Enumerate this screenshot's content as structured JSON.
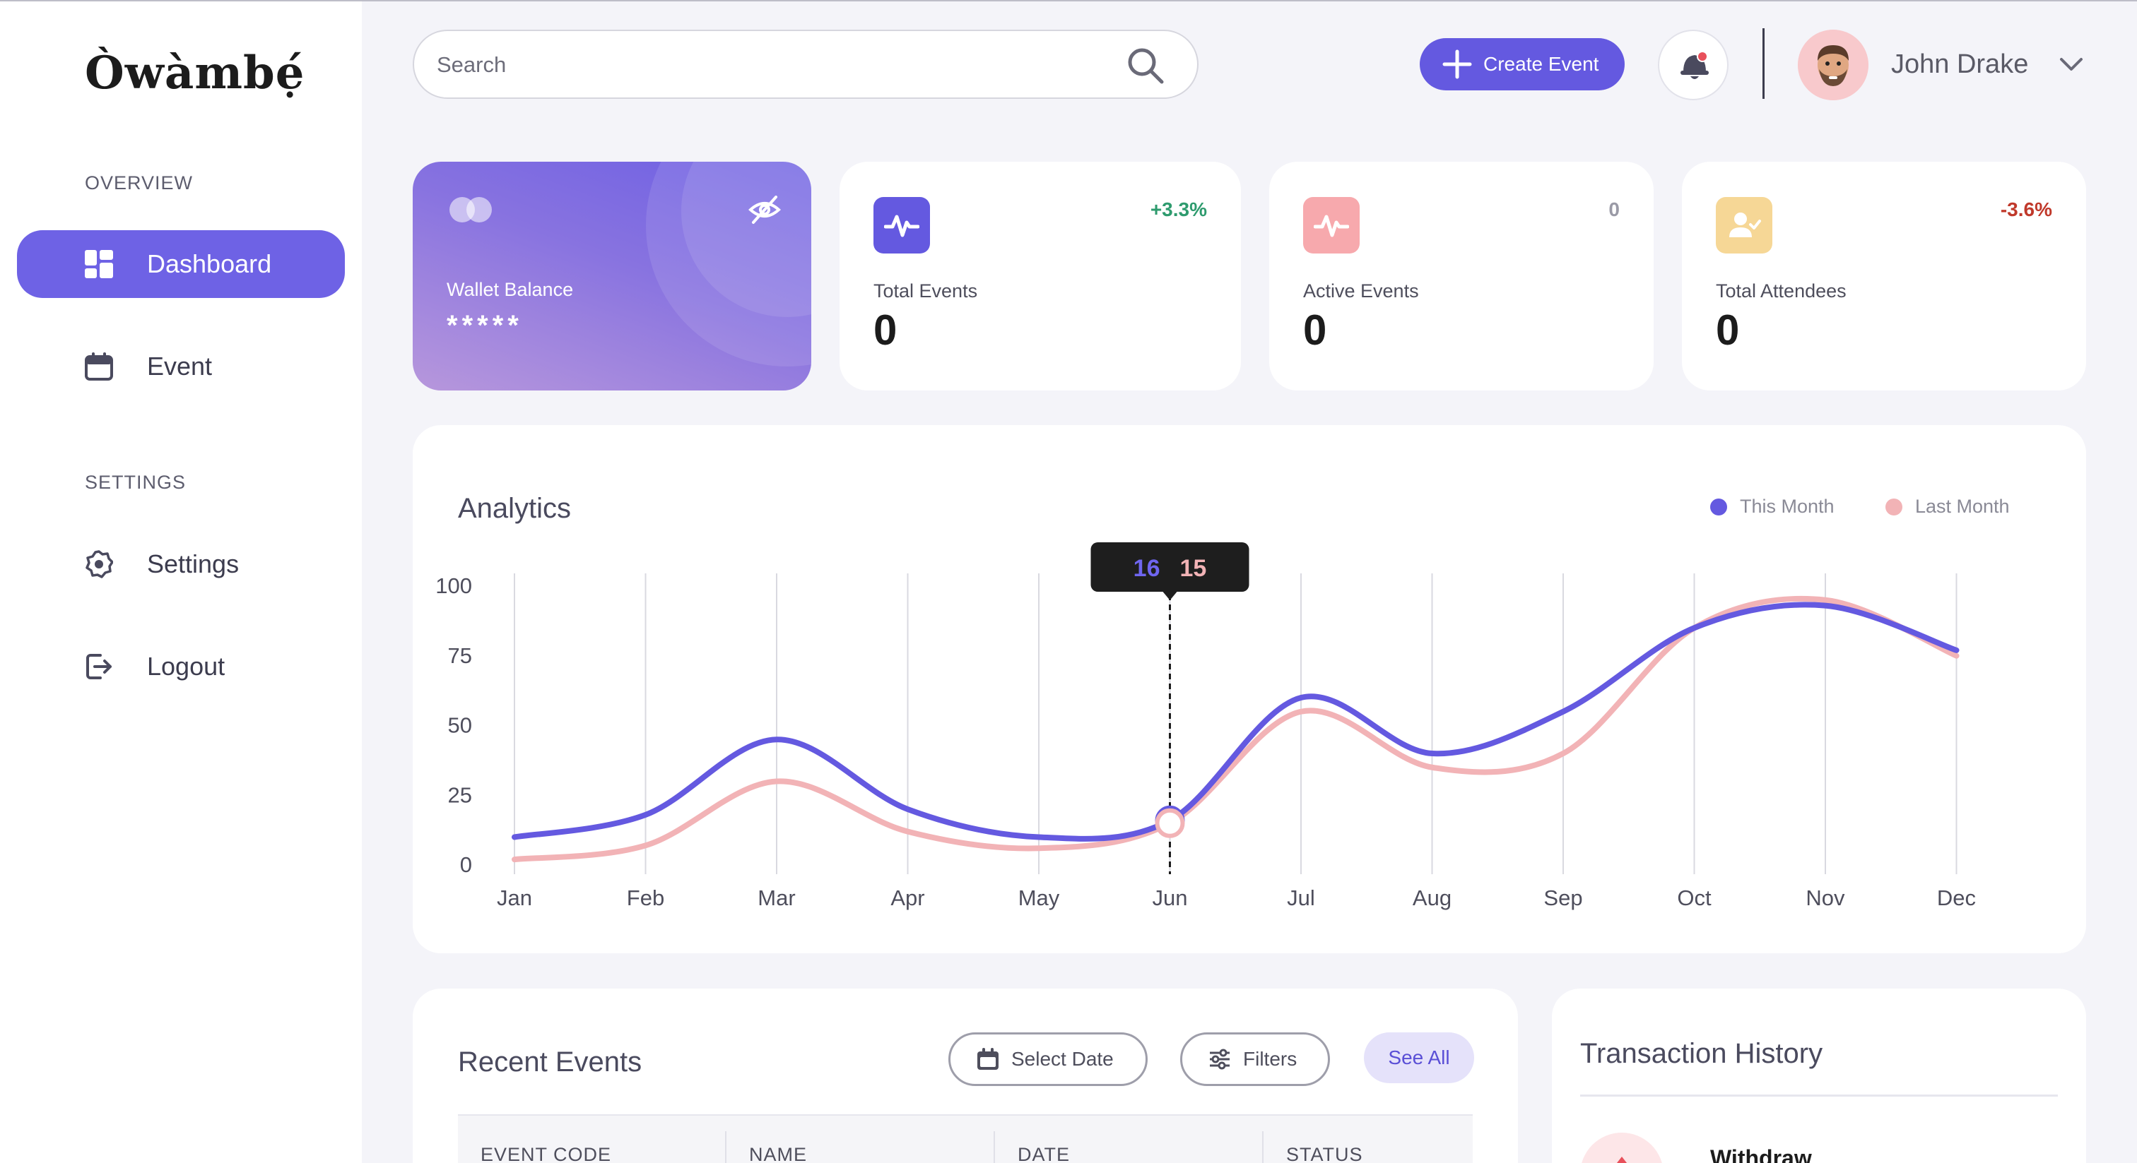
{
  "app": {
    "logo": "Òwàmbẹ́"
  },
  "sidebar": {
    "overview_label": "OVERVIEW",
    "settings_label": "SETTINGS",
    "items": [
      {
        "label": "Dashboard",
        "icon": "dashboard-icon",
        "active": true
      },
      {
        "label": "Event",
        "icon": "calendar-icon",
        "active": false
      },
      {
        "label": "Settings",
        "icon": "gear-icon",
        "active": false
      },
      {
        "label": "Logout",
        "icon": "logout-icon",
        "active": false
      }
    ]
  },
  "header": {
    "search_placeholder": "Search",
    "create_label": "Create Event",
    "user_name": "John Drake"
  },
  "wallet": {
    "label": "Wallet Balance",
    "value": "*****"
  },
  "stats": [
    {
      "label": "Total Events",
      "value": "0",
      "change": "+3.3%",
      "change_color": "#2e9b6e",
      "icon_bg": "#6459e0"
    },
    {
      "label": "Active Events",
      "value": "0",
      "change": "0",
      "change_color": "#9a9aa6",
      "icon_bg": "#f7a9ad"
    },
    {
      "label": "Total Attendees",
      "value": "0",
      "change": "-3.6%",
      "change_color": "#c0392b",
      "icon_bg": "#f6d796"
    }
  ],
  "analytics": {
    "title": "Analytics",
    "legend_this": "This Month",
    "legend_last": "Last Month",
    "tooltip_this": "16",
    "tooltip_last": "15"
  },
  "chart_data": {
    "type": "line",
    "categories": [
      "Jan",
      "Feb",
      "Mar",
      "Apr",
      "May",
      "Jun",
      "Jul",
      "Aug",
      "Sep",
      "Oct",
      "Nov",
      "Dec"
    ],
    "series": [
      {
        "name": "This Month",
        "color": "#6459e0",
        "values": [
          10,
          18,
          45,
          20,
          10,
          16,
          60,
          40,
          55,
          85,
          93,
          77
        ]
      },
      {
        "name": "Last Month",
        "color": "#f2b3b6",
        "values": [
          2,
          7,
          30,
          12,
          6,
          15,
          55,
          35,
          40,
          85,
          95,
          75
        ]
      }
    ],
    "yticks": [
      0,
      25,
      50,
      75,
      100
    ],
    "ylim": [
      0,
      100
    ],
    "highlight_index": 5
  },
  "recent": {
    "title": "Recent Events",
    "select_date": "Select Date",
    "filters": "Filters",
    "see_all": "See All",
    "columns": [
      "EVENT CODE",
      "NAME",
      "DATE",
      "STATUS"
    ]
  },
  "transactions": {
    "title": "Transaction History",
    "first_type": "Withdraw"
  }
}
